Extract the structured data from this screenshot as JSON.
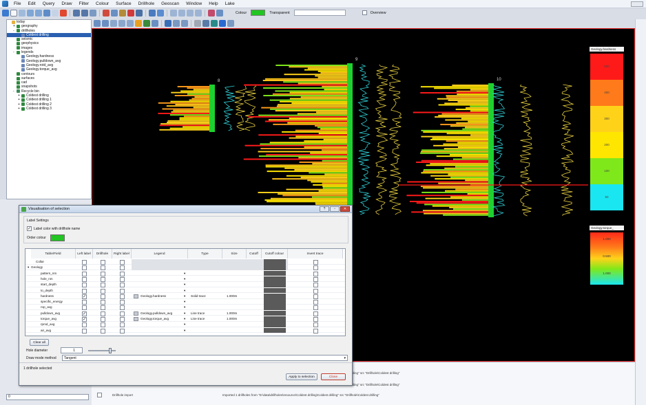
{
  "menubar": {
    "items": [
      "File",
      "Edit",
      "Query",
      "Draw",
      "Filter",
      "Colour",
      "Surface",
      "Drillhole",
      "Geoscan",
      "Window",
      "Help",
      "Lake"
    ]
  },
  "toolbar": {
    "colour_label": "Colour",
    "colour_value": "#22c522",
    "transparent_label": "Transparent",
    "overview_label": "Overview"
  },
  "tree": {
    "items": [
      {
        "label": "today",
        "depth": 0,
        "icon": "folder-icon",
        "expander": ""
      },
      {
        "label": "geography",
        "depth": 1,
        "icon": "globe-icon",
        "expander": "+"
      },
      {
        "label": "drillholes",
        "depth": 1,
        "icon": "globe-icon",
        "expander": "-"
      },
      {
        "label": "Coldest drilling",
        "depth": 2,
        "icon": "grid-icon",
        "expander": "",
        "selected": true
      },
      {
        "label": "seismic",
        "depth": 1,
        "icon": "globe-icon",
        "expander": ""
      },
      {
        "label": "geophysics",
        "depth": 1,
        "icon": "globe-icon",
        "expander": ""
      },
      {
        "label": "images",
        "depth": 1,
        "icon": "globe-icon",
        "expander": ""
      },
      {
        "label": "legends",
        "depth": 1,
        "icon": "globe-icon",
        "expander": "-"
      },
      {
        "label": "Geology.hardness",
        "depth": 2,
        "icon": "grid-icon",
        "expander": ""
      },
      {
        "label": "Geology.pulldown_avg",
        "depth": 2,
        "icon": "grid-icon",
        "expander": ""
      },
      {
        "label": "Geology.rotd_avg",
        "depth": 2,
        "icon": "grid-icon",
        "expander": ""
      },
      {
        "label": "Geology.torque_avg",
        "depth": 2,
        "icon": "grid-icon",
        "expander": ""
      },
      {
        "label": "contours",
        "depth": 1,
        "icon": "globe-icon",
        "expander": ""
      },
      {
        "label": "surfaces",
        "depth": 1,
        "icon": "globe-icon",
        "expander": ""
      },
      {
        "label": "cad",
        "depth": 1,
        "icon": "globe-icon",
        "expander": ""
      },
      {
        "label": "snapshots",
        "depth": 1,
        "icon": "globe-icon",
        "expander": ""
      },
      {
        "label": "Recycle bin",
        "depth": 1,
        "icon": "recycle-icon",
        "expander": "-"
      },
      {
        "label": "Coldest drilling",
        "depth": 2,
        "icon": "globe-icon",
        "expander": "+"
      },
      {
        "label": "Coldest drilling 1",
        "depth": 2,
        "icon": "globe-icon",
        "expander": "+"
      },
      {
        "label": "Coldest drilling 2",
        "depth": 2,
        "icon": "globe-icon",
        "expander": "+"
      },
      {
        "label": "Coldest drilling 3",
        "depth": 2,
        "icon": "globe-icon",
        "expander": "+"
      }
    ]
  },
  "viewport": {
    "hole_labels": [
      "8",
      "9",
      "10"
    ],
    "legend_hardness": {
      "title": "Geology.hardness",
      "bands": [
        {
          "color": "#ff1a1a",
          "label": "500"
        },
        {
          "color": "#ff7a1a",
          "label": "400"
        },
        {
          "color": "#ffd21a",
          "label": "300"
        },
        {
          "color": "#ffe600",
          "label": "200"
        },
        {
          "color": "#7fe81a",
          "label": "100"
        },
        {
          "color": "#19e6f0",
          "label": "50"
        }
      ]
    },
    "legend_torque": {
      "title": "Geology.torque_",
      "labels": [
        "1.000",
        "0.500",
        "1.000"
      ]
    }
  },
  "dialog": {
    "title": "Visualisation of selection",
    "group_label": "Label Settings",
    "label_color_text": "Label color with drillhole name",
    "order_colour_label": "Order colour",
    "order_colour_value": "#22c522",
    "headers": [
      "Table/Field",
      "Left label",
      "Drillhole",
      "Right label",
      "Legend",
      "Type",
      "Size",
      "Cutoff",
      "Cutoff colour",
      "Invert trace"
    ],
    "rows": [
      {
        "name": "Collar",
        "indent": 1,
        "legend": "",
        "type": "",
        "size": "",
        "shaded": true
      },
      {
        "name": "Geology",
        "indent": 0,
        "legend": "",
        "type": "",
        "size": "",
        "shaded": true,
        "expander": "▾"
      },
      {
        "name": "pattern_nm",
        "indent": 2,
        "legend": "",
        "type": "",
        "size": ""
      },
      {
        "name": "hole_nm",
        "indent": 2,
        "legend": "",
        "type": "",
        "size": ""
      },
      {
        "name": "start_depth",
        "indent": 2,
        "legend": "",
        "type": "",
        "size": ""
      },
      {
        "name": "to_depth",
        "indent": 2,
        "legend": "",
        "type": "",
        "size": ""
      },
      {
        "name": "hardness",
        "indent": 2,
        "legend": "Geology.hardness",
        "type": "Solid trace",
        "size": "1.000m",
        "checked": true
      },
      {
        "name": "specific_energy",
        "indent": 2,
        "legend": "",
        "type": "",
        "size": ""
      },
      {
        "name": "rop_avg",
        "indent": 2,
        "legend": "",
        "type": "",
        "size": ""
      },
      {
        "name": "pulldown_avg",
        "indent": 2,
        "legend": "Geology.pulldown_avg",
        "type": "Line trace",
        "size": "1.000m",
        "checked": true
      },
      {
        "name": "torque_avg",
        "indent": 2,
        "legend": "Geology.torque_avg",
        "type": "Line trace",
        "size": "1.000m",
        "checked": true
      },
      {
        "name": "rpmd_avg",
        "indent": 2,
        "legend": "",
        "type": "",
        "size": ""
      },
      {
        "name": "air_avg",
        "indent": 2,
        "legend": "",
        "type": "",
        "size": ""
      }
    ],
    "clear_all_label": "Clear all",
    "hole_diameter_label": "Hole diameter",
    "hole_diameter_value": "1",
    "drawing_method_label": "Draw mode method",
    "drawing_method_value": "Tangent",
    "status_text": "1 drillhole selected",
    "apply_label": "Apply to selection",
    "close_label": "Close"
  },
  "bottom": {
    "layer_name": "Drillhole import",
    "log_lines": [
      "ading\" src \"Drillhole\\Coldest drilling\"",
      "ading\" src \"Drillhole\\Coldest drilling\"",
      "Imported 1 drillholes from \"D:\\data\\drillholes\\resource\\Coldest drilling\\Coldest drilling\" src \"Drillhole\\Coldest drilling\""
    ],
    "field_value": "0"
  }
}
